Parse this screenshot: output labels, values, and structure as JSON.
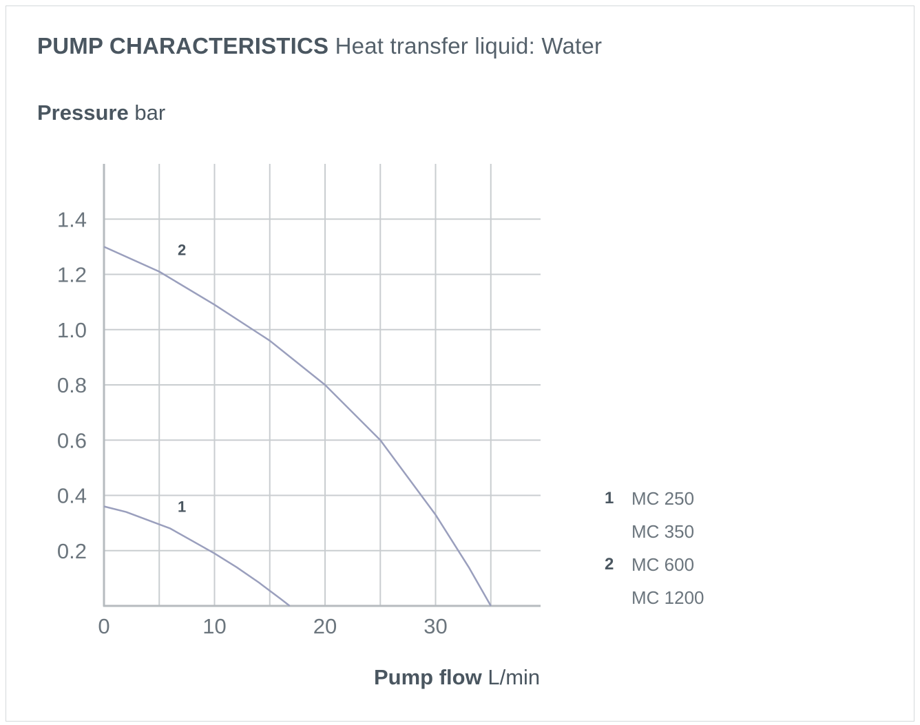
{
  "title": {
    "bold": "PUMP CHARACTERISTICS",
    "light": "Heat transfer liquid: Water"
  },
  "ylabel": {
    "bold": "Pressure",
    "unit": "bar"
  },
  "xlabel": {
    "bold": "Pump flow",
    "unit": "L/min"
  },
  "legend": [
    {
      "num": "1",
      "name": "MC 250"
    },
    {
      "num": "",
      "name": "MC 350"
    },
    {
      "num": "2",
      "name": "MC 600"
    },
    {
      "num": "",
      "name": "MC 1200"
    }
  ],
  "colors": {
    "curve": "#9a9fbd",
    "grid": "#c9cdd0",
    "axis": "#b6bbbf",
    "text": "#4a5660",
    "tick_text": "#6b757d"
  },
  "chart_data": {
    "type": "line",
    "title": "PUMP CHARACTERISTICS Heat transfer liquid: Water",
    "xlabel": "Pump flow L/min",
    "ylabel": "Pressure bar",
    "xlim": [
      0,
      39.5
    ],
    "ylim": [
      0,
      1.6
    ],
    "x_gridlines": [
      5,
      10,
      15,
      20,
      25,
      30,
      35
    ],
    "y_gridlines": [
      0.2,
      0.4,
      0.6,
      0.8,
      1.0,
      1.2,
      1.4
    ],
    "x_ticks": [
      {
        "value": 0,
        "label": "0"
      },
      {
        "value": 10,
        "label": "10"
      },
      {
        "value": 20,
        "label": "20"
      },
      {
        "value": 30,
        "label": "30"
      }
    ],
    "y_ticks": [
      {
        "value": 0.2,
        "label": "0.2"
      },
      {
        "value": 0.4,
        "label": "0.4"
      },
      {
        "value": 0.6,
        "label": "0.6"
      },
      {
        "value": 0.8,
        "label": "0.8"
      },
      {
        "value": 1.0,
        "label": "1.0"
      },
      {
        "value": 1.2,
        "label": "1.2"
      },
      {
        "value": 1.4,
        "label": "1.4"
      }
    ],
    "grid": true,
    "series": [
      {
        "name": "1",
        "label_at": [
          6.8,
          0.34
        ],
        "x": [
          0,
          2,
          4,
          6,
          8,
          10,
          12,
          14,
          16,
          16.8
        ],
        "y": [
          0.36,
          0.34,
          0.31,
          0.28,
          0.235,
          0.19,
          0.14,
          0.085,
          0.025,
          0
        ]
      },
      {
        "name": "2",
        "label_at": [
          6.8,
          1.27
        ],
        "x": [
          0,
          5,
          10,
          15,
          20,
          25,
          30,
          33,
          35
        ],
        "y": [
          1.3,
          1.21,
          1.09,
          0.96,
          0.8,
          0.6,
          0.33,
          0.14,
          0
        ]
      }
    ]
  }
}
